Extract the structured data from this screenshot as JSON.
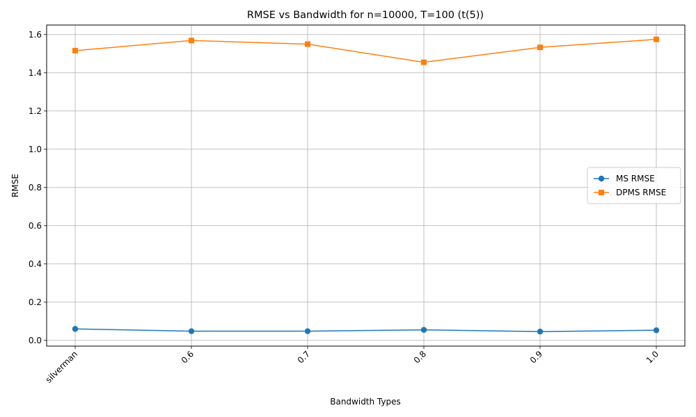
{
  "chart_data": {
    "type": "line",
    "title": "RMSE vs Bandwidth for n=10000, T=100 (t(5))",
    "xlabel": "Bandwidth Types",
    "ylabel": "RMSE",
    "categories": [
      "silverman",
      "0.6",
      "0.7",
      "0.8",
      "0.9",
      "1.0"
    ],
    "ylim": [
      -0.03,
      1.65
    ],
    "yticks": [
      "0.0",
      "0.2",
      "0.4",
      "0.6",
      "0.8",
      "1.0",
      "1.2",
      "1.4",
      "1.6"
    ],
    "grid": true,
    "legend_position": "center-right",
    "series": [
      {
        "name": "MS RMSE",
        "color": "#1f77b4",
        "marker": "circle",
        "values": [
          0.06,
          0.048,
          0.048,
          0.055,
          0.046,
          0.053
        ]
      },
      {
        "name": "DPMS RMSE",
        "color": "#ff7f0e",
        "marker": "square",
        "values": [
          1.516,
          1.569,
          1.55,
          1.455,
          1.533,
          1.575
        ]
      }
    ]
  }
}
